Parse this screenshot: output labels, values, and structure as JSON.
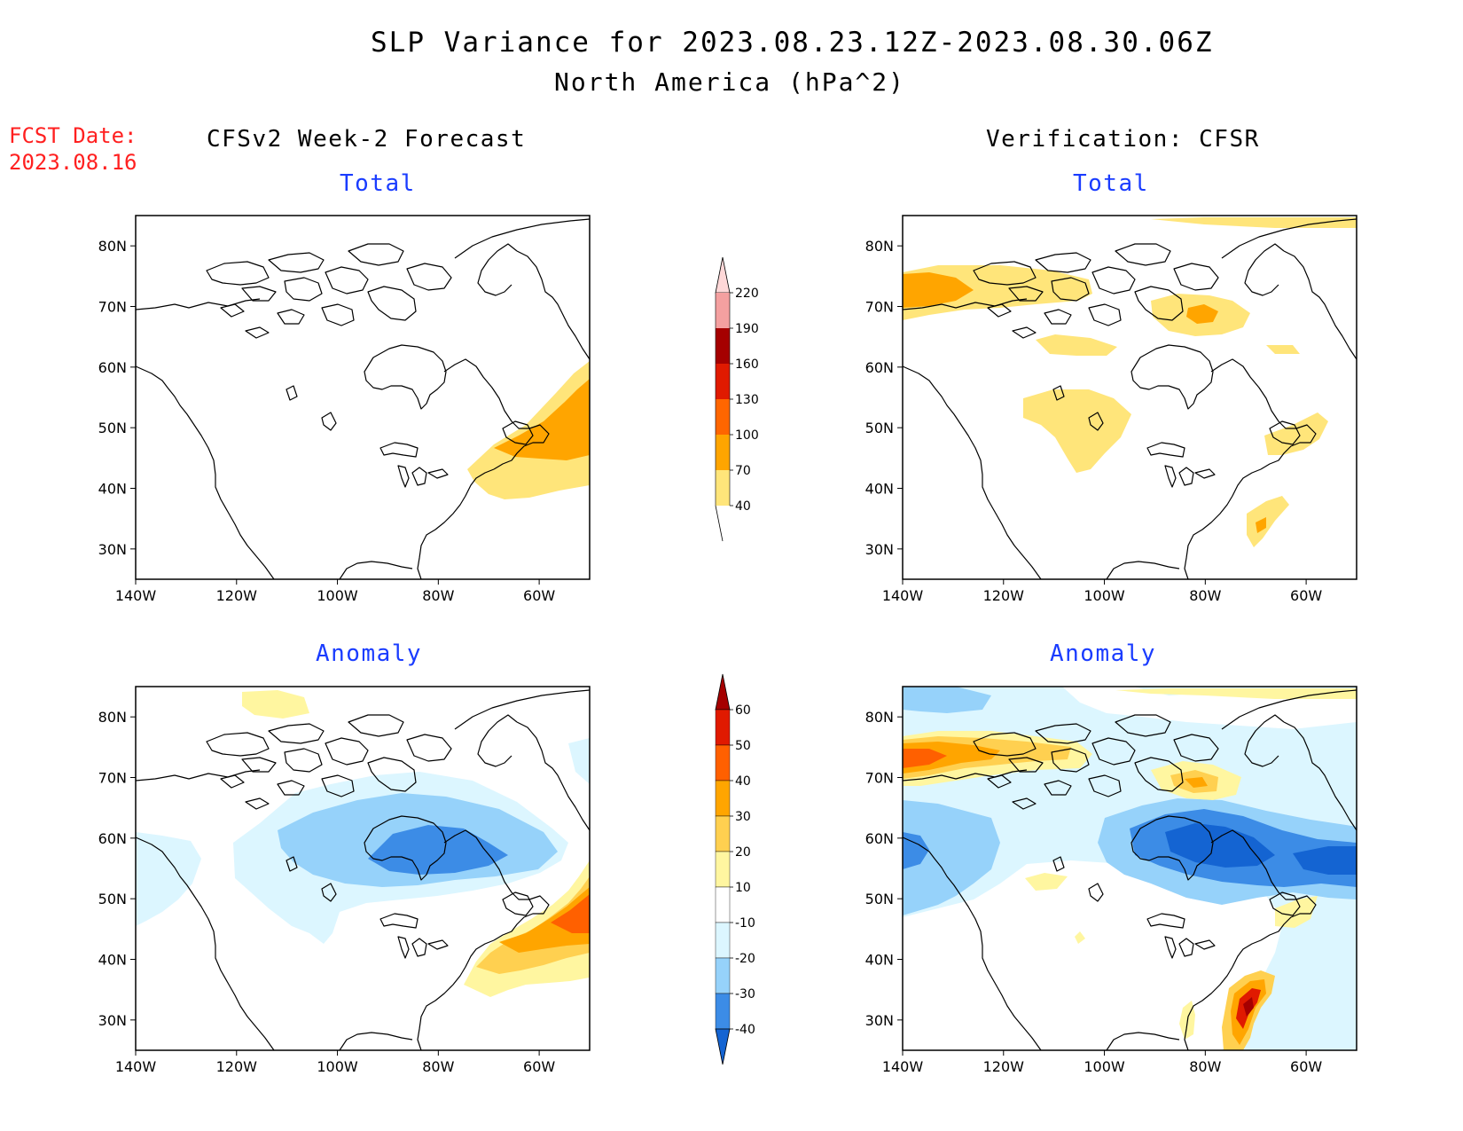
{
  "header": {
    "title": "SLP Variance for 2023.08.23.12Z-2023.08.30.06Z",
    "subtitle": "North America (hPa^2)"
  },
  "fcst_date": {
    "label": "FCST Date:",
    "value": "2023.08.16"
  },
  "columns": {
    "left": "CFSv2 Week-2 Forecast",
    "right": "Verification: CFSR"
  },
  "panels": {
    "fc_total": {
      "label": "Total"
    },
    "ver_total": {
      "label": "Total"
    },
    "fc_anom": {
      "label": "Anomaly"
    },
    "ver_anom": {
      "label": "Anomaly"
    }
  },
  "axes": {
    "lon_ticks": [
      "140W",
      "120W",
      "100W",
      "80W",
      "60W"
    ],
    "lat_ticks": [
      "80N",
      "70N",
      "60N",
      "50N",
      "40N",
      "30N"
    ]
  },
  "colorbars": {
    "total": {
      "levels": [
        "40",
        "70",
        "100",
        "130",
        "160",
        "190",
        "220"
      ],
      "colors": [
        "#ffe57a",
        "#ffa500",
        "#ff6600",
        "#e01a00",
        "#a50000",
        "#f4a0a0",
        "#ffd8d8"
      ]
    },
    "anomaly": {
      "levels": [
        "-40",
        "-30",
        "-20",
        "-10",
        "10",
        "20",
        "30",
        "40",
        "50",
        "60"
      ],
      "colors": [
        "#1464d2",
        "#3c8ce6",
        "#96d2fa",
        "#dcf6ff",
        "#ffffff",
        "#fff6a0",
        "#ffd050",
        "#ffa500",
        "#ff6000",
        "#e01a00",
        "#a50000"
      ]
    }
  }
}
